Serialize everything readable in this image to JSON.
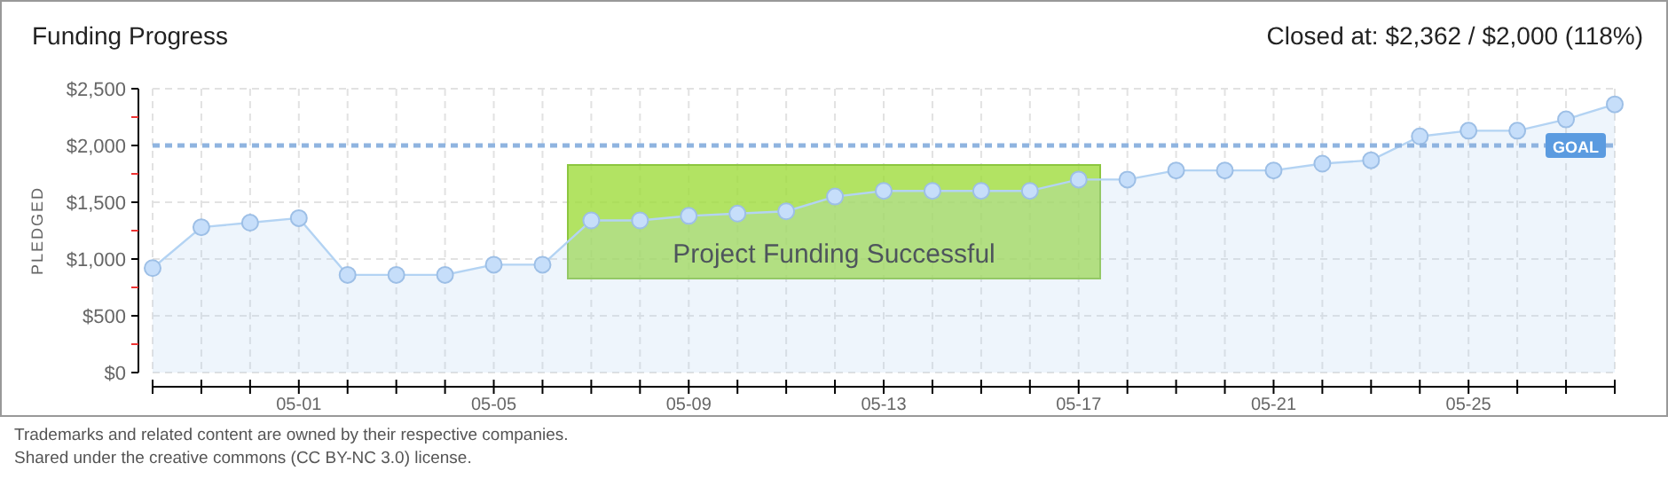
{
  "chart_data": {
    "type": "area",
    "title": "Funding Progress",
    "ylabel": "PLEDGED",
    "annotations": [
      "Closed at: $2,362 / $2,000 (118%)",
      "Project Funding Successful",
      "Trademarks and related content are owned by their respective companies.",
      "Shared under the creative commons (CC BY-NC 3.0) license."
    ],
    "x": [
      "--04-28",
      "--04-29",
      "--04-30",
      "--05-01",
      "--05-02",
      "--05-03",
      "--05-04",
      "--05-05",
      "--05-06",
      "--05-07",
      "--05-08",
      "--05-09",
      "--05-10",
      "--05-11",
      "--05-12",
      "--05-13",
      "--05-14",
      "--05-15",
      "--05-16",
      "--05-17",
      "--05-18",
      "--05-19",
      "--05-20",
      "--05-21",
      "--05-22",
      "--05-23",
      "--05-24",
      "--05-25",
      "--05-26",
      "--05-27",
      "--05-28"
    ],
    "series": [
      {
        "color": "#b3d3f3",
        "values": [
          920,
          1280,
          1320,
          1360,
          860,
          860,
          860,
          950,
          950,
          1340,
          1340,
          1380,
          1400,
          1420,
          1550,
          1600,
          1600,
          1600,
          1600,
          1700,
          1700,
          1780,
          1780,
          1780,
          1840,
          1870,
          2080,
          2130,
          2130,
          2230,
          2362
        ]
      }
    ],
    "xlim": [
      "--04-28",
      "--05-28"
    ],
    "xticks": [
      {
        "value": "--04-28",
        "label": null
      },
      {
        "value": "--04-29",
        "label": null
      },
      {
        "value": "--04-30",
        "label": null
      },
      {
        "value": "--05-01",
        "label": "05-01"
      },
      {
        "value": "--05-02",
        "label": null
      },
      {
        "value": "--05-03",
        "label": null
      },
      {
        "value": "--05-04",
        "label": null
      },
      {
        "value": "--05-05",
        "label": "05-05"
      },
      {
        "value": "--05-06",
        "label": null
      },
      {
        "value": "--05-07",
        "label": null
      },
      {
        "value": "--05-08",
        "label": null
      },
      {
        "value": "--05-09",
        "label": "05-09"
      },
      {
        "value": "--05-10",
        "label": null
      },
      {
        "value": "--05-11",
        "label": null
      },
      {
        "value": "--05-12",
        "label": null
      },
      {
        "value": "--05-13",
        "label": "05-13"
      },
      {
        "value": "--05-14",
        "label": null
      },
      {
        "value": "--05-15",
        "label": null
      },
      {
        "value": "--05-16",
        "label": null
      },
      {
        "value": "--05-17",
        "label": "05-17"
      },
      {
        "value": "--05-18",
        "label": null
      },
      {
        "value": "--05-19",
        "label": null
      },
      {
        "value": "--05-20",
        "label": null
      },
      {
        "value": "--05-21",
        "label": "05-21"
      },
      {
        "value": "--05-22",
        "label": null
      },
      {
        "value": "--05-23",
        "label": null
      },
      {
        "value": "--05-24",
        "label": null
      },
      {
        "value": "--05-25",
        "label": "05-25"
      },
      {
        "value": "--05-26",
        "label": null
      },
      {
        "value": "--05-27",
        "label": null
      },
      {
        "value": "--05-28",
        "label": null
      }
    ],
    "ylim": [
      0,
      2500
    ],
    "yticks": [
      {
        "value": 0,
        "label": "$0"
      },
      {
        "value": 250,
        "label": null
      },
      {
        "value": 500,
        "label": "$500"
      },
      {
        "value": 750,
        "label": null
      },
      {
        "value": 1000,
        "label": "$1,000"
      },
      {
        "value": 1250,
        "label": null
      },
      {
        "value": 1500,
        "label": "$1,500"
      },
      {
        "value": 1750,
        "label": null
      },
      {
        "value": 2000,
        "label": "$2,000"
      },
      {
        "value": 2250,
        "label": null
      },
      {
        "value": 2500,
        "label": "$2,500"
      }
    ],
    "ref_lines": [
      {
        "axis": "y",
        "value": 2000,
        "label": "GOAL",
        "color": "#8fb4e0",
        "line_style": "dashed"
      }
    ],
    "grid": true,
    "marker": "circle"
  }
}
